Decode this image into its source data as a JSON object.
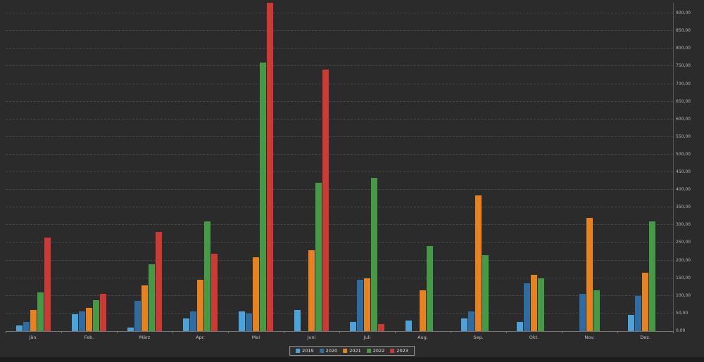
{
  "chart_data": {
    "type": "bar",
    "title": "",
    "xlabel": "",
    "ylabel": "",
    "categories": [
      "Jän.",
      "Feb.",
      "März",
      "Apr.",
      "Mai",
      "Juni",
      "Juli",
      "Aug.",
      "Sep.",
      "Okt.",
      "Nov.",
      "Dez."
    ],
    "series": [
      {
        "name": "2019",
        "color": "#4ba3d9",
        "values": [
          15,
          48,
          10,
          35,
          55,
          60,
          25,
          30,
          35,
          25,
          0,
          45
        ]
      },
      {
        "name": "2020",
        "color": "#2e6da4",
        "values": [
          25,
          55,
          85,
          55,
          50,
          0,
          145,
          0,
          55,
          135,
          105,
          100
        ]
      },
      {
        "name": "2021",
        "color": "#e8821e",
        "values": [
          60,
          65,
          130,
          145,
          210,
          230,
          150,
          115,
          385,
          160,
          320,
          165
        ]
      },
      {
        "name": "2022",
        "color": "#459a45",
        "values": [
          110,
          88,
          190,
          310,
          760,
          420,
          435,
          240,
          215,
          150,
          115,
          310
        ]
      },
      {
        "name": "2023",
        "color": "#cd3a33",
        "values": [
          265,
          105,
          280,
          220,
          935,
          740,
          20,
          0,
          0,
          0,
          0,
          0
        ]
      }
    ],
    "y_ticks": [
      "0,00",
      "50,00",
      "100,00",
      "150,00",
      "200,00",
      "250,00",
      "300,00",
      "350,00",
      "400,00",
      "450,00",
      "500,00",
      "550,00",
      "600,00",
      "650,00",
      "700,00",
      "750,00",
      "800,00",
      "850,00",
      "900,00"
    ],
    "y_tick_values": [
      0,
      50,
      100,
      150,
      200,
      250,
      300,
      350,
      400,
      450,
      500,
      550,
      600,
      650,
      700,
      750,
      800,
      850,
      900
    ],
    "ylim": [
      0,
      930
    ],
    "grid": "horizontal-dashed",
    "legend_position": "bottom-center",
    "axis_label_side": "right",
    "background_color": "#2b2b2b"
  },
  "legend_labels": [
    "2019",
    "2020",
    "2021",
    "2022",
    "2023"
  ]
}
